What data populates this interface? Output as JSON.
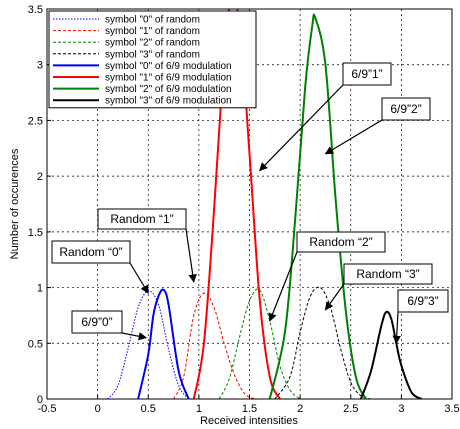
{
  "chart_data": {
    "type": "line",
    "xlabel": "Received intensities",
    "ylabel": "Number of occurences",
    "xlim": [
      -0.5,
      3.5
    ],
    "ylim": [
      0,
      3.5
    ],
    "xticks": [
      "-0.5",
      "0",
      "0.5",
      "1",
      "1.5",
      "2",
      "2.5",
      "3",
      "3.5"
    ],
    "yticks": [
      "0",
      "0.5",
      "1",
      "1.5",
      "2",
      "2.5",
      "3",
      "3.5"
    ],
    "grid": true,
    "legend_position": "top-left",
    "series": [
      {
        "name": "symbol \"0\" of random",
        "color": "#0000ff",
        "style": "dotted",
        "x": [
          0.1,
          0.2,
          0.3,
          0.4,
          0.5,
          0.6,
          0.7,
          0.8,
          0.9
        ],
        "y": [
          0.0,
          0.12,
          0.45,
          0.82,
          0.97,
          0.85,
          0.45,
          0.12,
          0.0
        ]
      },
      {
        "name": "symbol \"1\" of random",
        "color": "#ff0000",
        "style": "dashed",
        "x": [
          0.75,
          0.85,
          0.95,
          1.05,
          1.15,
          1.25,
          1.35,
          1.45,
          1.55
        ],
        "y": [
          0.0,
          0.2,
          0.75,
          0.95,
          0.82,
          0.5,
          0.22,
          0.05,
          0.0
        ]
      },
      {
        "name": "symbol \"2\" of random",
        "color": "#008000",
        "style": "dashed",
        "x": [
          1.2,
          1.3,
          1.4,
          1.5,
          1.6,
          1.7,
          1.8,
          1.9,
          2.0
        ],
        "y": [
          0.0,
          0.18,
          0.55,
          0.88,
          0.98,
          0.7,
          0.3,
          0.08,
          0.0
        ]
      },
      {
        "name": "symbol \"3\" of random",
        "color": "#000000",
        "style": "dashed",
        "x": [
          1.75,
          1.9,
          2.0,
          2.1,
          2.2,
          2.3,
          2.4,
          2.5,
          2.6,
          2.7
        ],
        "y": [
          0.0,
          0.2,
          0.6,
          0.92,
          1.0,
          0.82,
          0.45,
          0.15,
          0.03,
          0.0
        ]
      },
      {
        "name": "symbol \"0\" of 6/9 modulation",
        "color": "#0000ff",
        "style": "solid",
        "x": [
          0.4,
          0.5,
          0.55,
          0.6,
          0.65,
          0.7,
          0.8,
          0.9
        ],
        "y": [
          0.0,
          0.4,
          0.75,
          0.92,
          0.98,
          0.85,
          0.25,
          0.0
        ]
      },
      {
        "name": "symbol \"1\" of 6/9 modulation",
        "color": "#ff0000",
        "style": "solid",
        "x": [
          0.95,
          1.05,
          1.15,
          1.25,
          1.3,
          1.4,
          1.5,
          1.6,
          1.7,
          1.8
        ],
        "y": [
          0.0,
          0.5,
          1.7,
          3.1,
          3.5,
          3.4,
          2.2,
          0.9,
          0.2,
          0.0
        ]
      },
      {
        "name": "symbol \"2\" of 6/9 modulation",
        "color": "#008000",
        "style": "solid",
        "x": [
          1.7,
          1.85,
          1.95,
          2.05,
          2.12,
          2.15,
          2.25,
          2.35,
          2.45,
          2.55,
          2.65
        ],
        "y": [
          0.0,
          0.6,
          1.6,
          2.8,
          3.35,
          3.42,
          3.0,
          1.8,
          0.8,
          0.2,
          0.0
        ]
      },
      {
        "name": "symbol \"3\" of 6/9 modulation",
        "color": "#000000",
        "style": "solid",
        "x": [
          2.6,
          2.7,
          2.8,
          2.85,
          2.9,
          2.95,
          3.0,
          3.1,
          3.2
        ],
        "y": [
          0.0,
          0.25,
          0.65,
          0.78,
          0.72,
          0.5,
          0.3,
          0.06,
          0.0
        ]
      }
    ],
    "annotations": [
      {
        "text": "Random “0”",
        "x": 0.5,
        "y": 0.95
      },
      {
        "text": "6/9”0”",
        "x": 0.48,
        "y": 0.55
      },
      {
        "text": "Random “1”",
        "x": 0.95,
        "y": 1.05
      },
      {
        "text": "Random “2”",
        "x": 1.7,
        "y": 0.7
      },
      {
        "text": "Random “3”",
        "x": 2.25,
        "y": 0.8
      },
      {
        "text": "6/9”1”",
        "x": 1.6,
        "y": 2.05
      },
      {
        "text": "6/9”2”",
        "x": 2.25,
        "y": 2.2
      },
      {
        "text": "6/9”3”",
        "x": 2.95,
        "y": 0.5
      }
    ]
  }
}
